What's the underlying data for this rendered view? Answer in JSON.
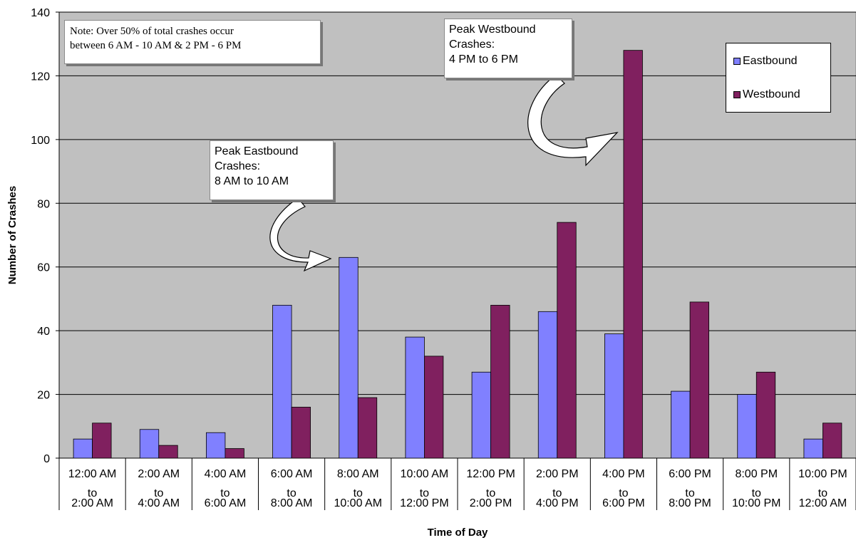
{
  "chart_data": {
    "type": "bar",
    "title": "",
    "xlabel": "Time of Day",
    "ylabel": "Number of Crashes",
    "ylim": [
      0,
      140
    ],
    "yticks": [
      "0",
      "20",
      "40",
      "60",
      "80",
      "100",
      "120",
      "140"
    ],
    "grid": true,
    "legend_position": "top-right",
    "categories": [
      [
        "12:00 AM",
        "to",
        "2:00 AM"
      ],
      [
        "2:00 AM",
        "to",
        "4:00 AM"
      ],
      [
        "4:00 AM",
        "to",
        "6:00 AM"
      ],
      [
        "6:00 AM",
        "to",
        "8:00 AM"
      ],
      [
        "8:00 AM",
        "to",
        "10:00 AM"
      ],
      [
        "10:00 AM",
        "to",
        "12:00 PM"
      ],
      [
        "12:00 PM",
        "to",
        "2:00 PM"
      ],
      [
        "2:00 PM",
        "to",
        "4:00 PM"
      ],
      [
        "4:00 PM",
        "to",
        "6:00 PM"
      ],
      [
        "6:00 PM",
        "to",
        "8:00 PM"
      ],
      [
        "8:00 PM",
        "to",
        "10:00 PM"
      ],
      [
        "10:00 PM",
        "to",
        "12:00 AM"
      ]
    ],
    "series": [
      {
        "name": "Eastbound",
        "color": "#8080ff",
        "values": [
          6,
          9,
          8,
          48,
          63,
          38,
          27,
          46,
          39,
          21,
          20,
          6
        ]
      },
      {
        "name": "Westbound",
        "color": "#80205f",
        "values": [
          11,
          4,
          3,
          16,
          19,
          32,
          48,
          74,
          128,
          49,
          27,
          11
        ]
      }
    ],
    "annotations": {
      "note": [
        "Note: Over 50% of total crashes occur",
        "between 6 AM - 10 AM & 2 PM - 6 PM"
      ],
      "peak_eastbound": [
        "Peak Eastbound",
        "Crashes:",
        "8 AM to 10 AM"
      ],
      "peak_westbound": [
        "Peak Westbound",
        "Crashes:",
        "4 PM to 6 PM"
      ]
    },
    "colors": {
      "plot_background": "#c0c0c0",
      "gridline": "#000000"
    }
  }
}
